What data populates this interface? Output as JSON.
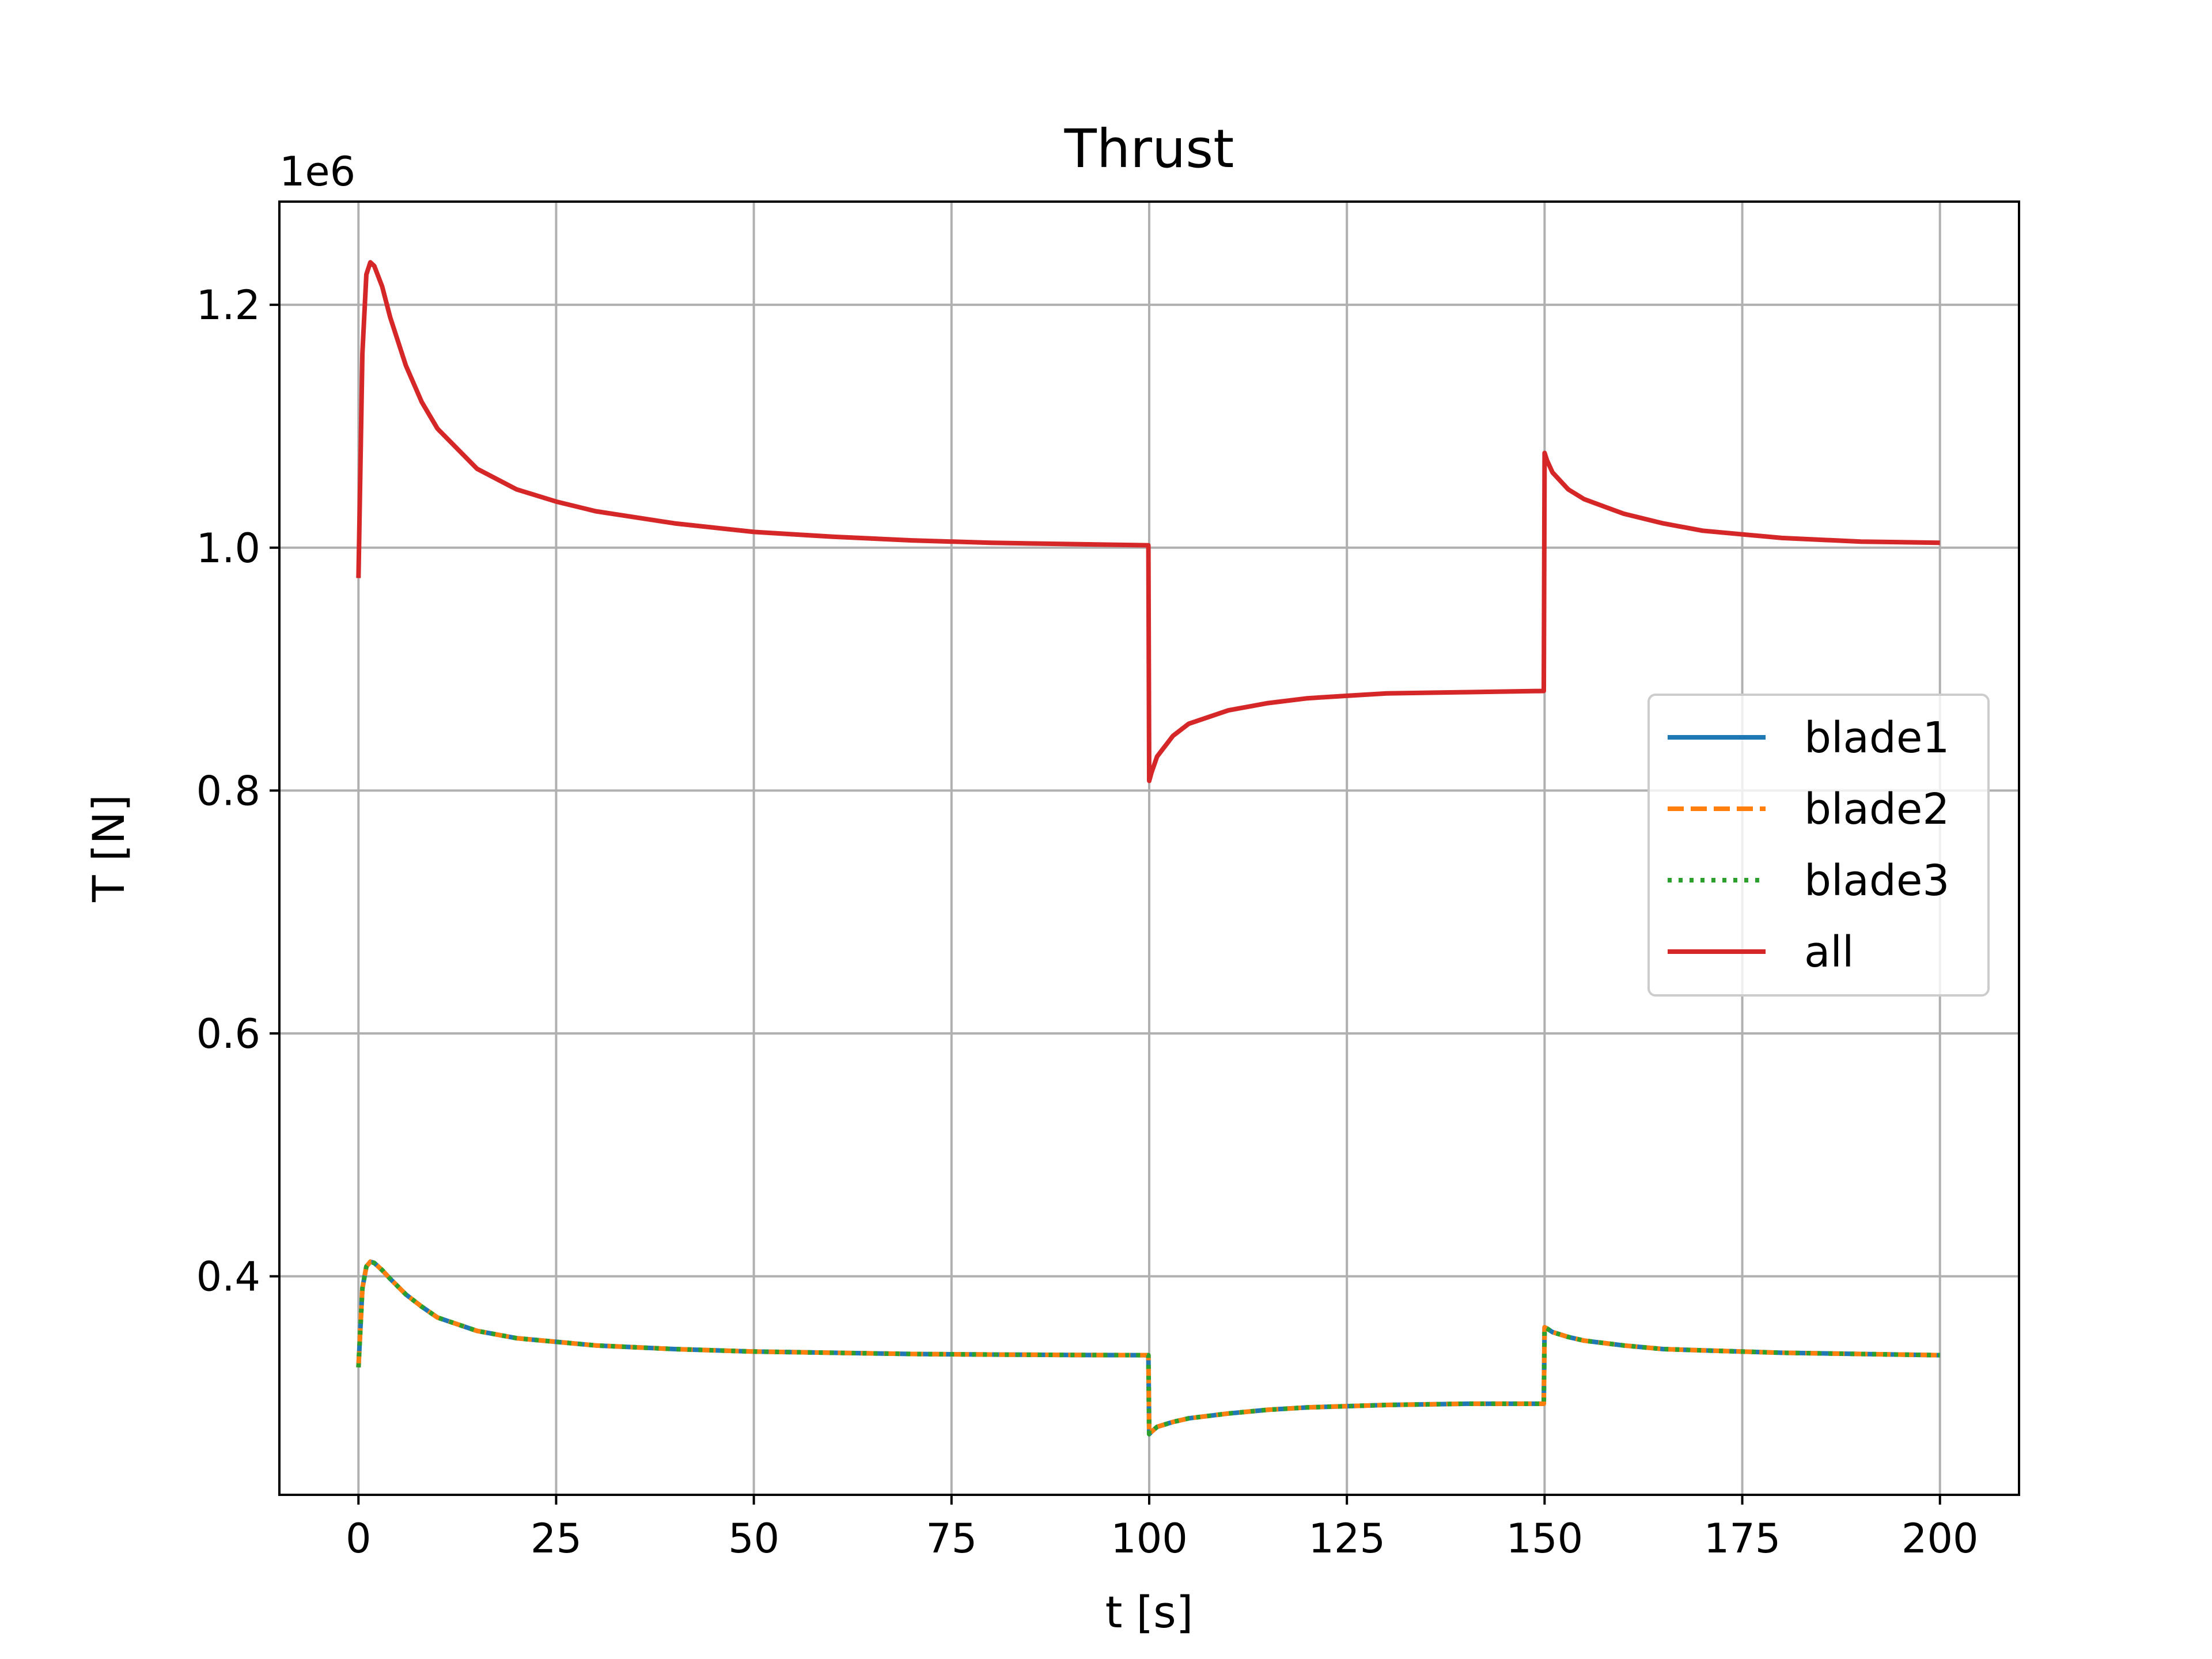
{
  "chart_data": {
    "type": "line",
    "title": "Thrust",
    "xlabel": "t [s]",
    "ylabel": "T [N]",
    "y_offset_text": "1e6",
    "xlim": [
      -10,
      210
    ],
    "ylim": [
      220000,
      1285000
    ],
    "xticks": [
      0,
      25,
      50,
      75,
      100,
      125,
      150,
      175,
      200
    ],
    "xtick_labels": [
      "0",
      "25",
      "50",
      "75",
      "100",
      "125",
      "150",
      "175",
      "200"
    ],
    "yticks": [
      400000,
      600000,
      800000,
      1000000,
      1200000
    ],
    "ytick_labels": [
      "0.4",
      "0.6",
      "0.8",
      "1.0",
      "1.2"
    ],
    "grid": true,
    "legend_position": "center-right",
    "x": [
      0,
      0.5,
      1,
      1.5,
      2,
      3,
      4,
      6,
      8,
      10,
      15,
      20,
      25,
      30,
      40,
      50,
      60,
      70,
      80,
      90,
      99.9,
      100,
      100.3,
      101,
      103,
      105,
      110,
      115,
      120,
      125,
      130,
      140,
      149.9,
      150,
      150.3,
      151,
      153,
      155,
      160,
      165,
      170,
      180,
      190,
      200
    ],
    "series": [
      {
        "name": "blade1",
        "color": "#1f77b4",
        "style": "solid",
        "values": [
          325000,
          390000,
          408000,
          412000,
          411000,
          405000,
          398000,
          385000,
          375000,
          366000,
          355000,
          349000,
          346000,
          343000,
          340000,
          338000,
          337000,
          336000,
          335500,
          335200,
          335000,
          270000,
          272000,
          276000,
          280000,
          283000,
          287000,
          290000,
          292000,
          293000,
          294000,
          295000,
          295000,
          358000,
          357000,
          354000,
          350000,
          347000,
          343000,
          340000,
          339000,
          337000,
          336000,
          335000
        ]
      },
      {
        "name": "blade2",
        "color": "#ff7f0e",
        "style": "dashed",
        "values": [
          325000,
          390000,
          408000,
          412000,
          411000,
          405000,
          398000,
          385000,
          375000,
          366000,
          355000,
          349000,
          346000,
          343000,
          340000,
          338000,
          337000,
          336000,
          335500,
          335200,
          335000,
          270000,
          272000,
          276000,
          280000,
          283000,
          287000,
          290000,
          292000,
          293000,
          294000,
          295000,
          295000,
          358000,
          357000,
          354000,
          350000,
          347000,
          343000,
          340000,
          339000,
          337000,
          336000,
          335000
        ]
      },
      {
        "name": "blade3",
        "color": "#2ca02c",
        "style": "dotted",
        "values": [
          325000,
          390000,
          408000,
          412000,
          411000,
          405000,
          398000,
          385000,
          375000,
          366000,
          355000,
          349000,
          346000,
          343000,
          340000,
          338000,
          337000,
          336000,
          335500,
          335200,
          335000,
          270000,
          272000,
          276000,
          280000,
          283000,
          287000,
          290000,
          292000,
          293000,
          294000,
          295000,
          295000,
          358000,
          357000,
          354000,
          350000,
          347000,
          343000,
          340000,
          339000,
          337000,
          336000,
          335000
        ]
      },
      {
        "name": "all",
        "color": "#d62728",
        "style": "solid",
        "values": [
          975000,
          1160000,
          1225000,
          1235000,
          1232000,
          1215000,
          1190000,
          1150000,
          1120000,
          1098000,
          1065000,
          1048000,
          1038000,
          1030000,
          1020000,
          1013000,
          1009000,
          1006000,
          1004000,
          1003000,
          1002000,
          808000,
          815000,
          828000,
          845000,
          855000,
          866000,
          872000,
          876000,
          878000,
          880000,
          881000,
          882000,
          1078000,
          1072000,
          1062000,
          1048000,
          1040000,
          1028000,
          1020000,
          1014000,
          1008000,
          1005000,
          1004000
        ]
      }
    ]
  }
}
